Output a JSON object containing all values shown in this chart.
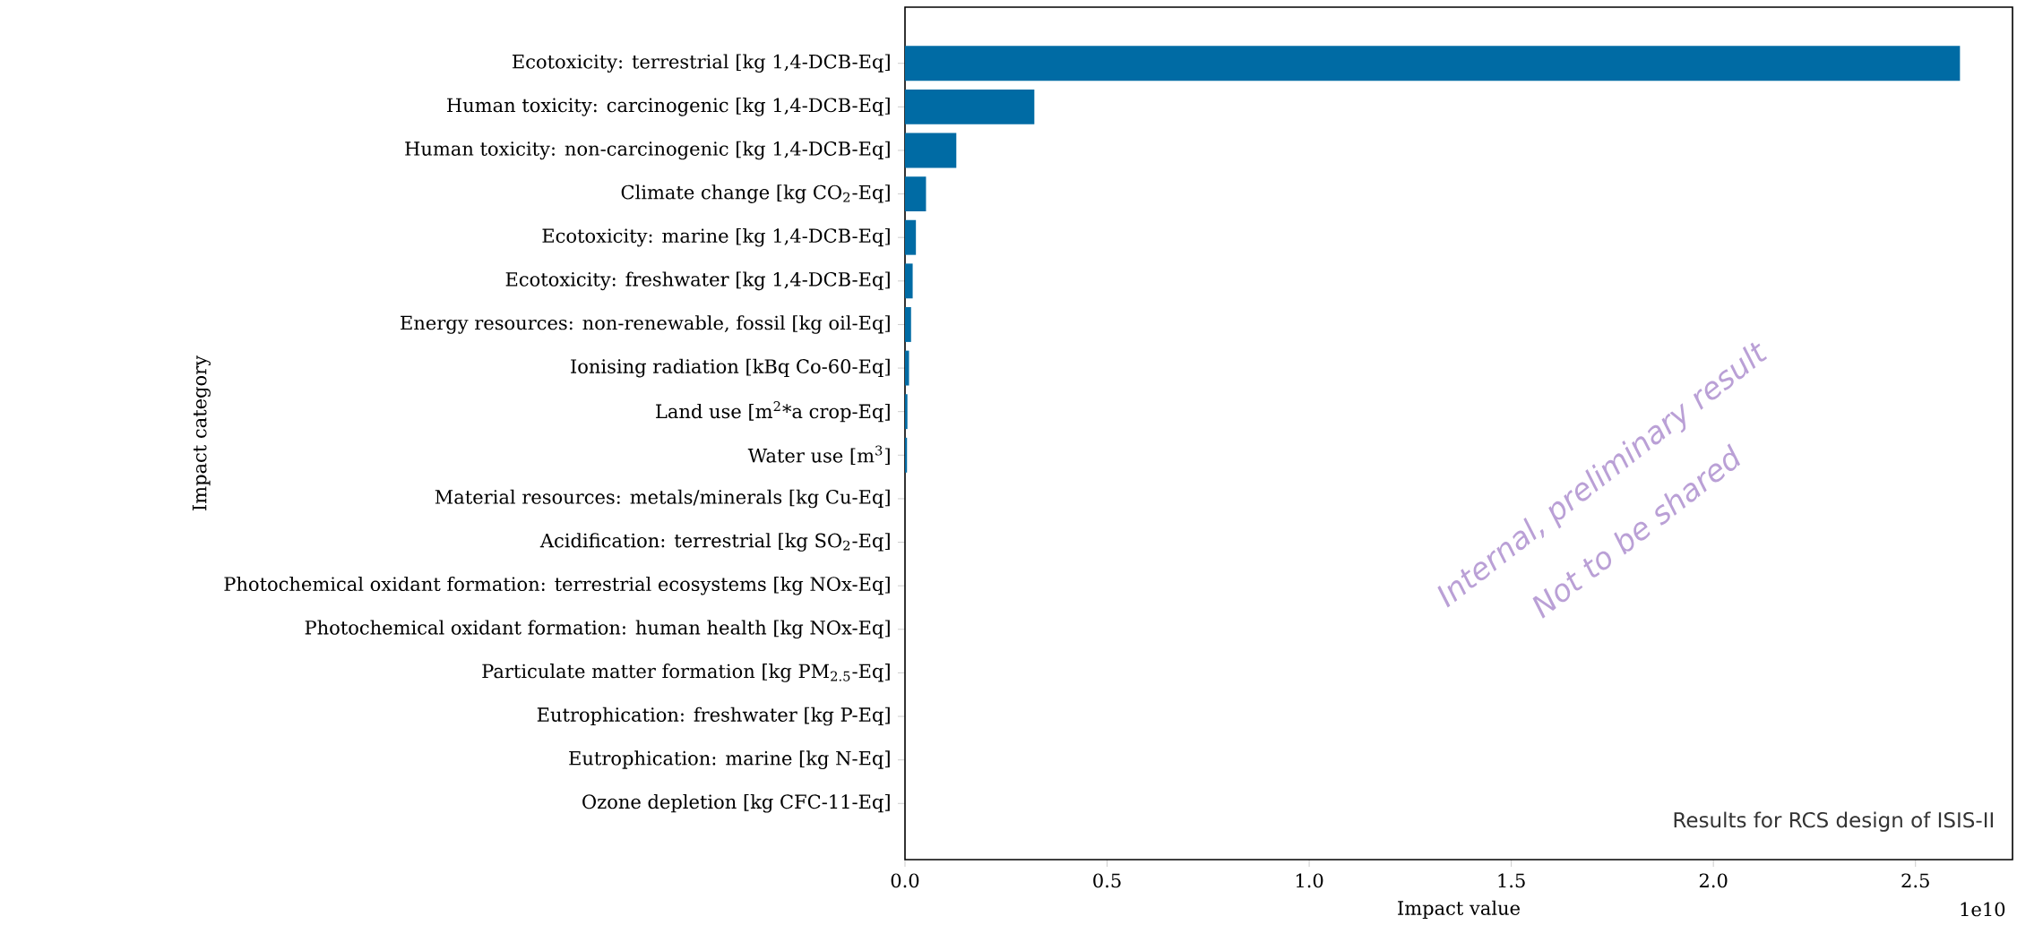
{
  "chart_data": {
    "type": "bar",
    "orientation": "horizontal",
    "xlabel": "Impact value",
    "ylabel": "Impact category",
    "color": "#006ba4",
    "categories": [
      "Ecotoxicity: terrestrial [kg 1,4-DCB-Eq]",
      "Human toxicity: carcinogenic [kg 1,4-DCB-Eq]",
      "Human toxicity: non-carcinogenic [kg 1,4-DCB-Eq]",
      "Climate change [kg CO$_{2}$-Eq]",
      "Ecotoxicity: marine [kg 1,4-DCB-Eq]",
      "Ecotoxicity: freshwater [kg 1,4-DCB-Eq]",
      "Energy resources: non-renewable, fossil [kg oil-Eq]",
      "Ionising radiation [kBq Co-60-Eq]",
      "Land use [m$^{2}$*a crop-Eq]",
      "Water use [m$^{3}$]",
      "Material resources: metals/minerals [kg Cu-Eq]",
      "Acidification: terrestrial [kg SO$_{2}$-Eq]",
      "Photochemical oxidant formation: terrestrial ecosystems [kg NOx-Eq]",
      "Photochemical oxidant formation: human health [kg NOx-Eq]",
      "Particulate matter formation [kg PM$_{2.5}$-Eq]",
      "Eutrophication: freshwater [kg P-Eq]",
      "Eutrophication: marine [kg N-Eq]",
      "Ozone depletion [kg CFC-11-Eq]"
    ],
    "values": [
      2.61,
      0.32,
      0.127,
      0.052,
      0.027,
      0.019,
      0.015,
      0.01,
      0.006,
      0.005,
      0,
      0,
      0,
      0,
      0,
      0,
      0,
      0
    ],
    "xlim": [
      0,
      2.74
    ],
    "xticks": [
      {
        "value": 0,
        "label": "0.0"
      },
      {
        "value": 0.5,
        "label": "0.5"
      },
      {
        "value": 1,
        "label": "1.0"
      },
      {
        "value": 1.5,
        "label": "1.5"
      },
      {
        "value": 2,
        "label": "2.0"
      },
      {
        "value": 2.5,
        "label": "2.5"
      }
    ],
    "annotations": [
      "Results for RCS design of ISIS-II",
      "1e10",
      "Internal, preliminary result",
      "Not to be shared"
    ]
  }
}
